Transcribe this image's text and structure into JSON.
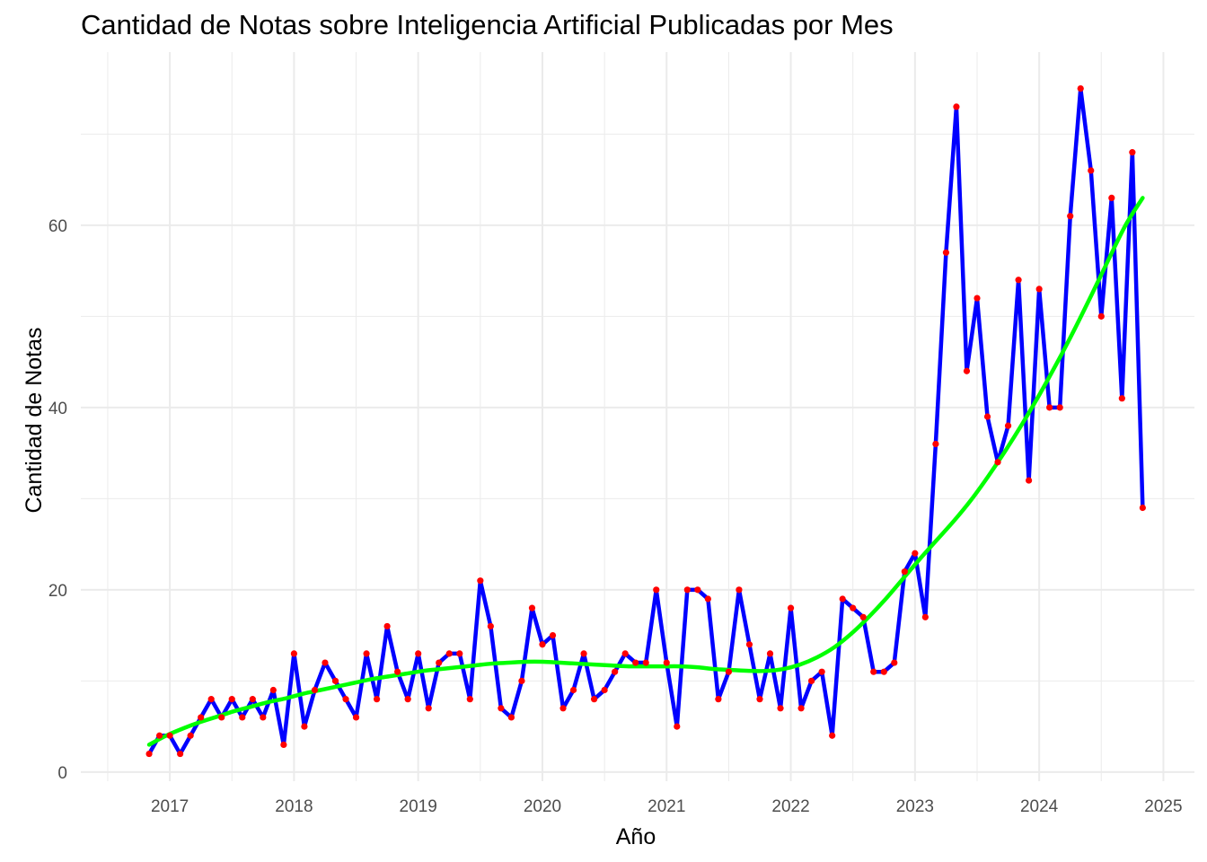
{
  "chart_data": {
    "type": "line",
    "title": "Cantidad de Notas sobre Inteligencia Artificial Publicadas por Mes",
    "xlabel": "Año",
    "ylabel": "Cantidad de Notas",
    "x_ticks": [
      "2017",
      "2018",
      "2019",
      "2020",
      "2021",
      "2022",
      "2023",
      "2024",
      "2025"
    ],
    "y_ticks": [
      "0",
      "20",
      "40",
      "60"
    ],
    "ylim": [
      -1,
      79
    ],
    "grid": true,
    "legend": "none",
    "colors": {
      "line": "#0000ff",
      "points": "#ff0000",
      "trend": "#00ff00",
      "grid": "#ebebeb"
    },
    "x_start": "2016-11",
    "series": [
      {
        "values": [
          2,
          4,
          4,
          2,
          4,
          6,
          8,
          6,
          8,
          6,
          8,
          6,
          9,
          3,
          13,
          5,
          9,
          12,
          10,
          8,
          6,
          13,
          8,
          16,
          11,
          8,
          13,
          7,
          12,
          13,
          13,
          8,
          21,
          16,
          7,
          6,
          10,
          18,
          14,
          15,
          7,
          9,
          13,
          8,
          9,
          11,
          13,
          12,
          12,
          20,
          12,
          5,
          20,
          20,
          19,
          8,
          11,
          20,
          14,
          8,
          13,
          7,
          18,
          7,
          10,
          11,
          4,
          19,
          18,
          17,
          11,
          11,
          12,
          22,
          24,
          17,
          36,
          57,
          73,
          44,
          52,
          39,
          34,
          38,
          54,
          32,
          53,
          40,
          40,
          61,
          75,
          66,
          50,
          63,
          41,
          68,
          29
        ]
      },
      {
        "values": [
          3,
          4,
          4.8,
          5.5,
          6.1,
          6.7,
          7.2,
          7.7,
          8.1,
          8.6,
          9,
          9.4,
          9.8,
          10.2,
          10.5,
          10.8,
          11.1,
          11.3,
          11.5,
          11.7,
          11.9,
          12,
          12.1,
          12.1,
          12,
          11.9,
          11.8,
          11.7,
          11.6,
          11.6,
          11.6,
          11.6,
          11.5,
          11.3,
          11.2,
          11.1,
          11.1,
          11.3,
          11.8,
          12.6,
          13.7,
          15.2,
          17,
          19,
          21.2,
          23.4,
          25.5,
          27.6,
          29.9,
          32.5,
          35.3,
          38.3,
          41.5,
          44.9,
          48.5,
          52.3,
          56.2,
          60,
          63
        ]
      }
    ]
  }
}
